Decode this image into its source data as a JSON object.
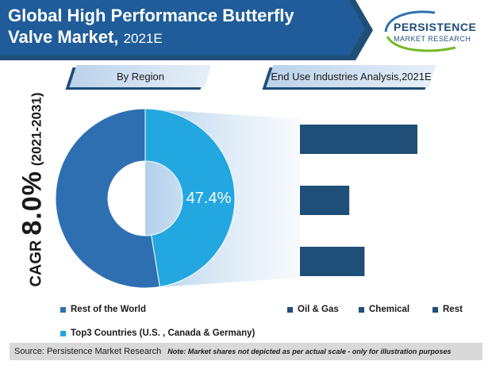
{
  "title": {
    "line1": "Global High Performance Butterfly",
    "line2": "Valve Market,",
    "year": "2021E"
  },
  "logo": {
    "name": "PERSISTENCE",
    "sub": "MARKET RESEARCH"
  },
  "sections": {
    "region": "By Region",
    "end_use": "End Use Industries Analysis,2021E"
  },
  "cagr": {
    "label": "CAGR",
    "value": "8.0%",
    "period": "(2021-2031)"
  },
  "colors": {
    "dark_blue": "#2e6fb2",
    "light_blue": "#23a7e1",
    "bar_blue": "#1f4e79",
    "banner_blue": "#1f5c99"
  },
  "chart_data": [
    {
      "type": "pie",
      "variant": "donut",
      "slices": [
        {
          "label": "Top3 Countries (U.S. , Canada & Germany)",
          "value": 47.4,
          "color": "#23a7e1",
          "data_label": "47.4%"
        },
        {
          "label": "Rest of the World",
          "value": 52.6,
          "color": "#2e6fb2"
        }
      ]
    },
    {
      "type": "bar",
      "orientation": "horizontal",
      "categories": [
        "Oil & Gas",
        "Chemical",
        "Rest"
      ],
      "values": [
        100,
        42,
        55
      ],
      "value_note": "relative scale, not depicted to actual scale",
      "color": "#1f4e79"
    }
  ],
  "legend": {
    "region": [
      {
        "label": "Rest of the World",
        "color": "#2e6fb2"
      },
      {
        "label": "Top3 Countries (U.S. , Canada & Germany)",
        "color": "#23a7e1"
      }
    ],
    "end_use": [
      {
        "label": "Oil & Gas",
        "color": "#1f4e79"
      },
      {
        "label": "Chemical",
        "color": "#1f4e79"
      },
      {
        "label": "Rest",
        "color": "#1f4e79"
      }
    ]
  },
  "footer": {
    "source": "Source: Persistence Market Research",
    "note": "Note: Market shares not depicted as per actual scale - only for illustration purposes"
  }
}
